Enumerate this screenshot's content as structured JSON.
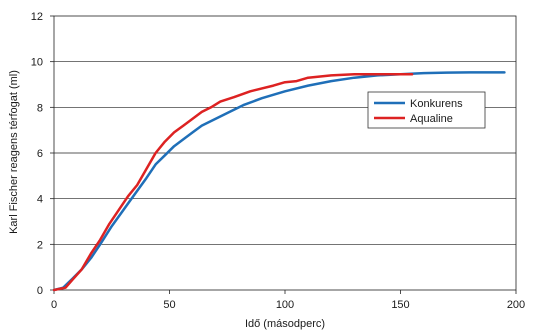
{
  "chart_data": {
    "type": "line",
    "title": "",
    "xlabel": "Idő (másodperc)",
    "ylabel": "Karl Fischer reagens térfogat (ml)",
    "xlim": [
      0,
      200
    ],
    "ylim": [
      0,
      12
    ],
    "xticks": [
      0,
      50,
      100,
      150,
      200
    ],
    "yticks": [
      0,
      2,
      4,
      6,
      8,
      10,
      12
    ],
    "grid": "horizontal",
    "legend_position": "right",
    "series": [
      {
        "name": "Konkurens",
        "color": "#1f6fb8",
        "points": [
          [
            0,
            0
          ],
          [
            4,
            0.1
          ],
          [
            8,
            0.5
          ],
          [
            12,
            0.9
          ],
          [
            16,
            1.4
          ],
          [
            20,
            2.0
          ],
          [
            25,
            2.8
          ],
          [
            30,
            3.5
          ],
          [
            35,
            4.2
          ],
          [
            40,
            4.9
          ],
          [
            44,
            5.5
          ],
          [
            48,
            5.9
          ],
          [
            52,
            6.3
          ],
          [
            56,
            6.6
          ],
          [
            60,
            6.9
          ],
          [
            64,
            7.2
          ],
          [
            70,
            7.5
          ],
          [
            76,
            7.8
          ],
          [
            82,
            8.1
          ],
          [
            90,
            8.4
          ],
          [
            100,
            8.7
          ],
          [
            110,
            8.95
          ],
          [
            120,
            9.15
          ],
          [
            130,
            9.3
          ],
          [
            140,
            9.4
          ],
          [
            150,
            9.45
          ],
          [
            160,
            9.5
          ],
          [
            170,
            9.52
          ],
          [
            180,
            9.53
          ],
          [
            195,
            9.53
          ]
        ]
      },
      {
        "name": "Aqualine",
        "color": "#dd2222",
        "points": [
          [
            0,
            0
          ],
          [
            5,
            0.1
          ],
          [
            8,
            0.45
          ],
          [
            12,
            0.9
          ],
          [
            16,
            1.6
          ],
          [
            20,
            2.2
          ],
          [
            24,
            2.9
          ],
          [
            28,
            3.5
          ],
          [
            32,
            4.1
          ],
          [
            36,
            4.6
          ],
          [
            40,
            5.3
          ],
          [
            44,
            6.0
          ],
          [
            48,
            6.5
          ],
          [
            52,
            6.9
          ],
          [
            56,
            7.2
          ],
          [
            60,
            7.5
          ],
          [
            64,
            7.8
          ],
          [
            68,
            8.0
          ],
          [
            72,
            8.25
          ],
          [
            78,
            8.45
          ],
          [
            85,
            8.7
          ],
          [
            95,
            8.95
          ],
          [
            100,
            9.1
          ],
          [
            105,
            9.15
          ],
          [
            110,
            9.3
          ],
          [
            120,
            9.4
          ],
          [
            130,
            9.45
          ],
          [
            140,
            9.45
          ],
          [
            150,
            9.45
          ],
          [
            155,
            9.45
          ]
        ]
      }
    ]
  }
}
